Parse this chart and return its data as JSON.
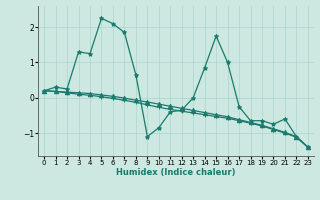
{
  "xlabel": "Humidex (Indice chaleur)",
  "ylabel": "",
  "bg_color": "#cce8e0",
  "line_color": "#1a7a6e",
  "grid_color": "#aad4cc",
  "xlim": [
    -0.5,
    23.5
  ],
  "ylim": [
    -1.65,
    2.6
  ],
  "yticks": [
    -1,
    0,
    1,
    2
  ],
  "xticks": [
    0,
    1,
    2,
    3,
    4,
    5,
    6,
    7,
    8,
    9,
    10,
    11,
    12,
    13,
    14,
    15,
    16,
    17,
    18,
    19,
    20,
    21,
    22,
    23
  ],
  "series": [
    {
      "x": [
        0,
        1,
        2,
        3,
        4,
        5,
        6,
        7,
        8,
        9,
        10,
        11,
        12,
        13,
        14,
        15,
        16,
        17,
        18,
        19,
        20,
        21,
        22,
        23
      ],
      "y": [
        0.2,
        0.3,
        0.25,
        1.3,
        1.25,
        2.25,
        2.1,
        1.85,
        0.65,
        -1.1,
        -0.85,
        -0.4,
        -0.35,
        0.0,
        0.85,
        1.75,
        1.0,
        -0.25,
        -0.65,
        -0.65,
        -0.75,
        -0.6,
        -1.1,
        -1.4
      ],
      "marker": "*",
      "lw": 0.9
    },
    {
      "x": [
        0,
        1,
        2,
        3,
        4,
        5,
        6,
        7,
        8,
        9,
        10,
        11,
        12,
        13,
        14,
        15,
        16,
        17,
        18,
        19,
        20,
        21,
        22,
        23
      ],
      "y": [
        0.2,
        0.18,
        0.16,
        0.14,
        0.12,
        0.08,
        0.04,
        -0.01,
        -0.07,
        -0.12,
        -0.18,
        -0.24,
        -0.3,
        -0.36,
        -0.42,
        -0.48,
        -0.54,
        -0.62,
        -0.7,
        -0.78,
        -0.88,
        -0.98,
        -1.1,
        -1.4
      ],
      "marker": "^",
      "lw": 0.9
    },
    {
      "x": [
        0,
        1,
        2,
        3,
        4,
        5,
        6,
        7,
        8,
        9,
        10,
        11,
        12,
        13,
        14,
        15,
        16,
        17,
        18,
        19,
        20,
        21,
        22,
        23
      ],
      "y": [
        0.2,
        0.18,
        0.14,
        0.1,
        0.07,
        0.03,
        -0.02,
        -0.07,
        -0.13,
        -0.2,
        -0.27,
        -0.33,
        -0.38,
        -0.43,
        -0.48,
        -0.53,
        -0.58,
        -0.65,
        -0.72,
        -0.8,
        -0.9,
        -1.0,
        -1.12,
        -1.4
      ],
      "marker": "+",
      "lw": 0.9
    }
  ]
}
